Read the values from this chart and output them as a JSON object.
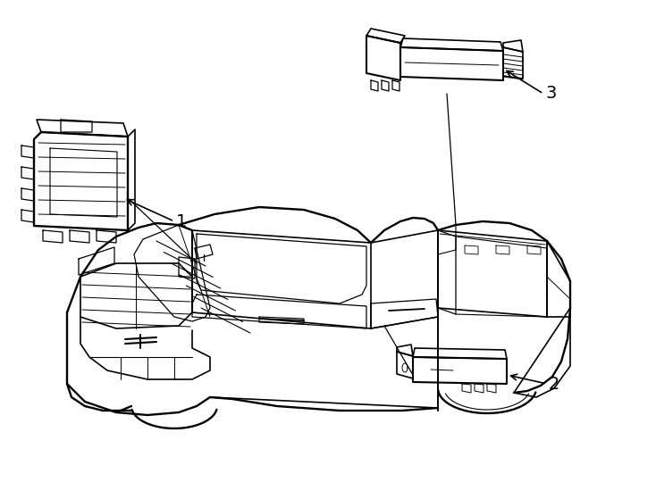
{
  "background_color": "#ffffff",
  "line_color": "#000000",
  "line_width": 1.2,
  "fig_width": 7.34,
  "fig_height": 5.4,
  "dpi": 100
}
